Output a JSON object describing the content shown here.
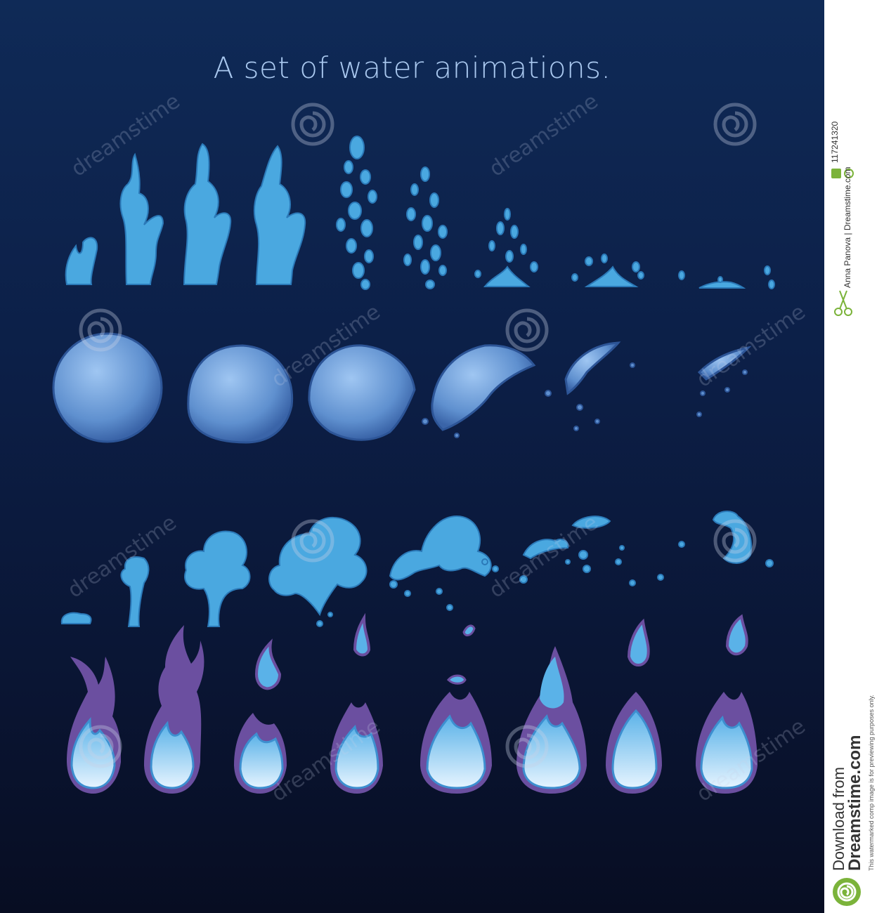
{
  "title": "A set of water animations.",
  "watermark": {
    "text": "dreamstime"
  },
  "sidebar": {
    "image_id": "117241320",
    "author": "Anna Panova | Dreamstime.com",
    "download_line1": "Download from",
    "download_line2": "Dreamstime.com",
    "notice": "This watermarked comp image is for previewing purposes only."
  },
  "colors": {
    "background": "#0c1f47",
    "water": "#4aa8e0",
    "flame_outer": "#6b4fa0"
  },
  "rows": [
    {
      "name": "splash-jet",
      "frames": 11
    },
    {
      "name": "bubble-burst",
      "frames": 6
    },
    {
      "name": "water-explosion",
      "frames": 8
    },
    {
      "name": "blue-flame",
      "frames": 8
    }
  ]
}
